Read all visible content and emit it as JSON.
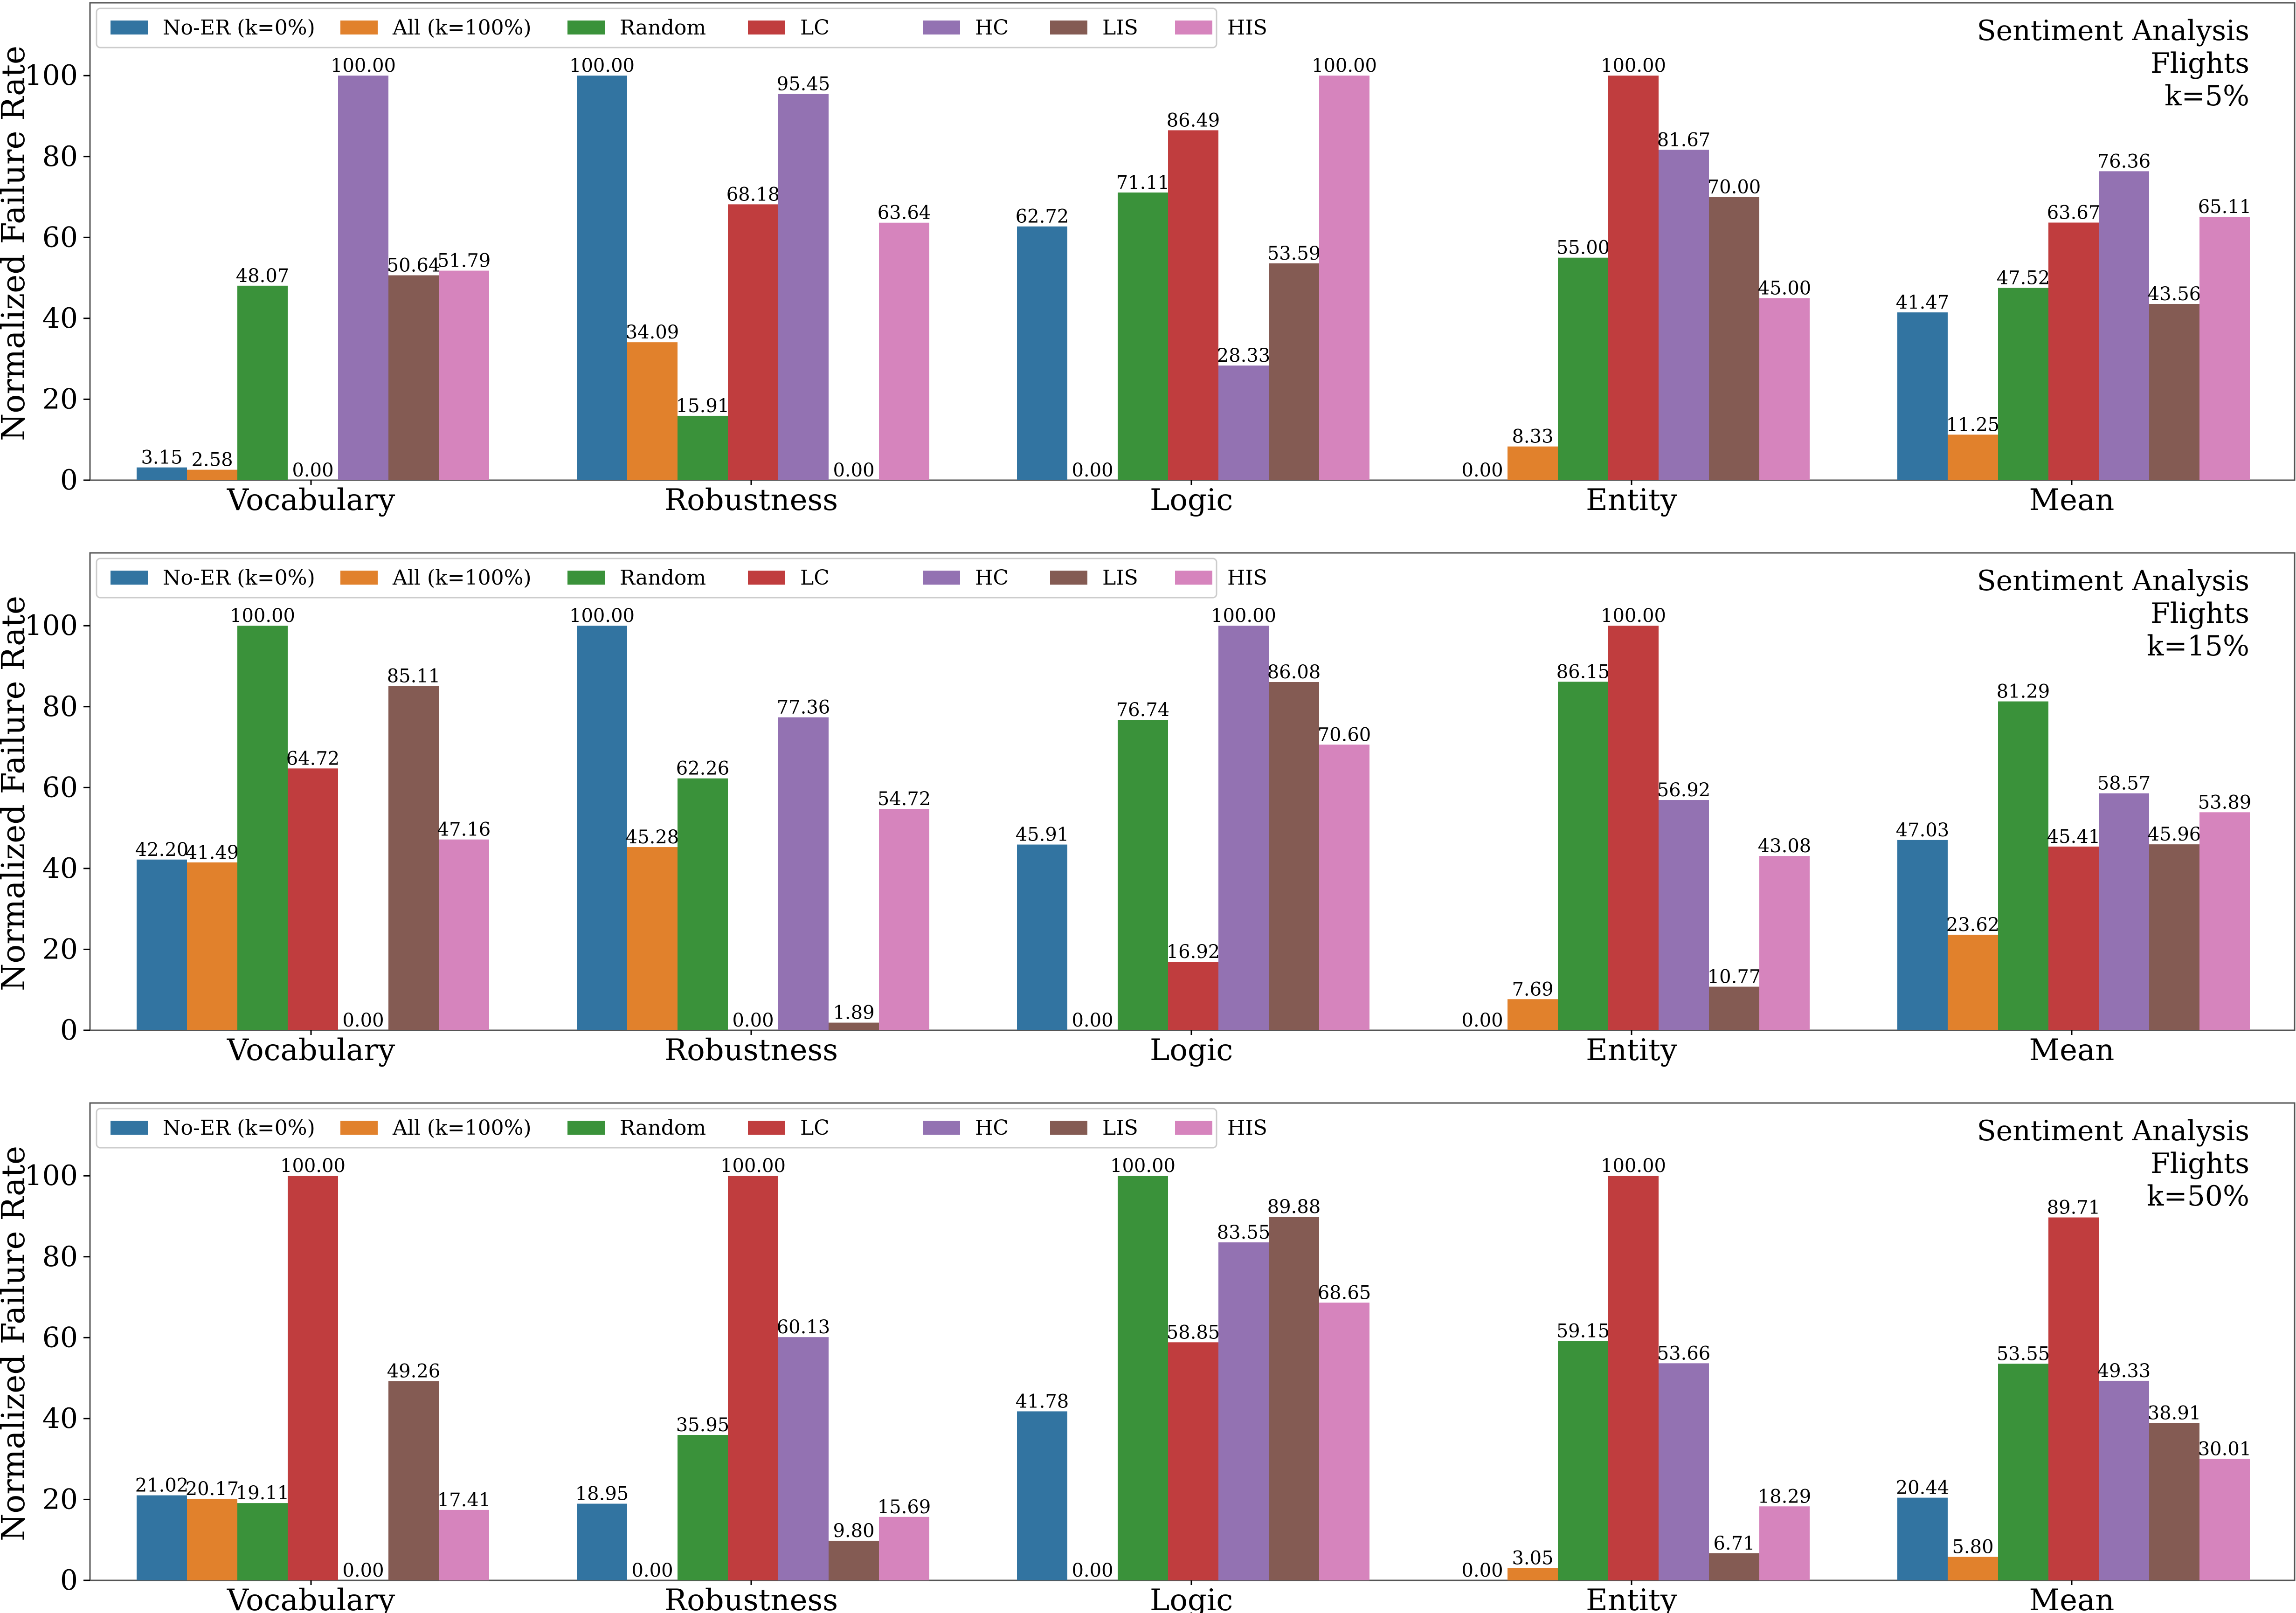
{
  "legend_entries": [
    "No-ER (k=0%)",
    "All (k=100%)",
    "Random",
    "LC",
    "HC",
    "LIS",
    "HIS"
  ],
  "chart_data": [
    {
      "type": "bar",
      "title": [
        "Sentiment Analysis",
        "Flights",
        "k=5%"
      ],
      "xlabel": "",
      "ylabel": "Normalized Failure Rate",
      "ylim": [
        0,
        118
      ],
      "yticks": [
        0,
        20,
        40,
        60,
        80,
        100
      ],
      "categories": [
        "Vocabulary",
        "Robustness",
        "Logic",
        "Entity",
        "Mean"
      ],
      "legend_position": "top-left",
      "series": [
        {
          "name": "No-ER (k=0%)",
          "color": "#3274a1",
          "values": [
            3.15,
            100.0,
            62.72,
            0.0,
            41.47
          ],
          "labels": [
            "3.15",
            "100.00",
            "62.72",
            "0.00",
            "41.47"
          ]
        },
        {
          "name": "All (k=100%)",
          "color": "#e1812c",
          "values": [
            2.58,
            34.09,
            0.0,
            8.33,
            11.25
          ],
          "labels": [
            "2.58",
            "34.09",
            "0.00",
            "8.33",
            "11.25"
          ]
        },
        {
          "name": "Random",
          "color": "#3a923a",
          "values": [
            48.07,
            15.91,
            71.11,
            55.0,
            47.52
          ],
          "labels": [
            "48.07",
            "15.91",
            "71.11",
            "55.00",
            "47.52"
          ]
        },
        {
          "name": "LC",
          "color": "#c03d3e",
          "values": [
            0.0,
            68.18,
            86.49,
            100.0,
            63.67
          ],
          "labels": [
            "0.00",
            "68.18",
            "86.49",
            "100.00",
            "63.67"
          ]
        },
        {
          "name": "HC",
          "color": "#9372b2",
          "values": [
            100.0,
            95.45,
            28.33,
            81.67,
            76.36
          ],
          "labels": [
            "100.00",
            "95.45",
            "28.33",
            "81.67",
            "76.36"
          ]
        },
        {
          "name": "LIS",
          "color": "#845b53",
          "values": [
            50.64,
            0.0,
            53.59,
            70.0,
            43.56
          ],
          "labels": [
            "50.64",
            "0.00",
            "53.59",
            "70.00",
            "43.56"
          ]
        },
        {
          "name": "HIS",
          "color": "#d684bd",
          "values": [
            51.79,
            63.64,
            100.0,
            45.0,
            65.11
          ],
          "labels": [
            "51.79",
            "63.64",
            "100.00",
            "45.00",
            "65.11"
          ]
        }
      ]
    },
    {
      "type": "bar",
      "title": [
        "Sentiment Analysis",
        "Flights",
        "k=15%"
      ],
      "xlabel": "",
      "ylabel": "Normalized Failure Rate",
      "ylim": [
        0,
        118
      ],
      "yticks": [
        0,
        20,
        40,
        60,
        80,
        100
      ],
      "categories": [
        "Vocabulary",
        "Robustness",
        "Logic",
        "Entity",
        "Mean"
      ],
      "legend_position": "top-left",
      "series": [
        {
          "name": "No-ER (k=0%)",
          "color": "#3274a1",
          "values": [
            42.2,
            100.0,
            45.91,
            0.0,
            47.03
          ],
          "labels": [
            "42.20",
            "100.00",
            "45.91",
            "0.00",
            "47.03"
          ]
        },
        {
          "name": "All (k=100%)",
          "color": "#e1812c",
          "values": [
            41.49,
            45.28,
            0.0,
            7.69,
            23.62
          ],
          "labels": [
            "41.49",
            "45.28",
            "0.00",
            "7.69",
            "23.62"
          ]
        },
        {
          "name": "Random",
          "color": "#3a923a",
          "values": [
            100.0,
            62.26,
            76.74,
            86.15,
            81.29
          ],
          "labels": [
            "100.00",
            "62.26",
            "76.74",
            "86.15",
            "81.29"
          ]
        },
        {
          "name": "LC",
          "color": "#c03d3e",
          "values": [
            64.72,
            0.0,
            16.92,
            100.0,
            45.41
          ],
          "labels": [
            "64.72",
            "0.00",
            "16.92",
            "100.00",
            "45.41"
          ]
        },
        {
          "name": "HC",
          "color": "#9372b2",
          "values": [
            0.0,
            77.36,
            100.0,
            56.92,
            58.57
          ],
          "labels": [
            "0.00",
            "77.36",
            "100.00",
            "56.92",
            "58.57"
          ]
        },
        {
          "name": "LIS",
          "color": "#845b53",
          "values": [
            85.11,
            1.89,
            86.08,
            10.77,
            45.96
          ],
          "labels": [
            "85.11",
            "1.89",
            "86.08",
            "10.77",
            "45.96"
          ]
        },
        {
          "name": "HIS",
          "color": "#d684bd",
          "values": [
            47.16,
            54.72,
            70.6,
            43.08,
            53.89
          ],
          "labels": [
            "47.16",
            "54.72",
            "70.60",
            "43.08",
            "53.89"
          ]
        }
      ]
    },
    {
      "type": "bar",
      "title": [
        "Sentiment Analysis",
        "Flights",
        "k=50%"
      ],
      "xlabel": "",
      "ylabel": "Normalized Failure Rate",
      "ylim": [
        0,
        118
      ],
      "yticks": [
        0,
        20,
        40,
        60,
        80,
        100
      ],
      "categories": [
        "Vocabulary",
        "Robustness",
        "Logic",
        "Entity",
        "Mean"
      ],
      "legend_position": "top-left",
      "series": [
        {
          "name": "No-ER (k=0%)",
          "color": "#3274a1",
          "values": [
            21.02,
            18.95,
            41.78,
            0.0,
            20.44
          ],
          "labels": [
            "21.02",
            "18.95",
            "41.78",
            "0.00",
            "20.44"
          ]
        },
        {
          "name": "All (k=100%)",
          "color": "#e1812c",
          "values": [
            20.17,
            0.0,
            0.0,
            3.05,
            5.8
          ],
          "labels": [
            "20.17",
            "0.00",
            "0.00",
            "3.05",
            "5.80"
          ]
        },
        {
          "name": "Random",
          "color": "#3a923a",
          "values": [
            19.11,
            35.95,
            100.0,
            59.15,
            53.55
          ],
          "labels": [
            "19.11",
            "35.95",
            "100.00",
            "59.15",
            "53.55"
          ]
        },
        {
          "name": "LC",
          "color": "#c03d3e",
          "values": [
            100.0,
            100.0,
            58.85,
            100.0,
            89.71
          ],
          "labels": [
            "100.00",
            "100.00",
            "58.85",
            "100.00",
            "89.71"
          ]
        },
        {
          "name": "HC",
          "color": "#9372b2",
          "values": [
            0.0,
            60.13,
            83.55,
            53.66,
            49.33
          ],
          "labels": [
            "0.00",
            "60.13",
            "83.55",
            "53.66",
            "49.33"
          ]
        },
        {
          "name": "LIS",
          "color": "#845b53",
          "values": [
            49.26,
            9.8,
            89.88,
            6.71,
            38.91
          ],
          "labels": [
            "49.26",
            "9.80",
            "89.88",
            "6.71",
            "38.91"
          ]
        },
        {
          "name": "HIS",
          "color": "#d684bd",
          "values": [
            17.41,
            15.69,
            68.65,
            18.29,
            30.01
          ],
          "labels": [
            "17.41",
            "15.69",
            "68.65",
            "18.29",
            "30.01"
          ]
        }
      ]
    }
  ]
}
